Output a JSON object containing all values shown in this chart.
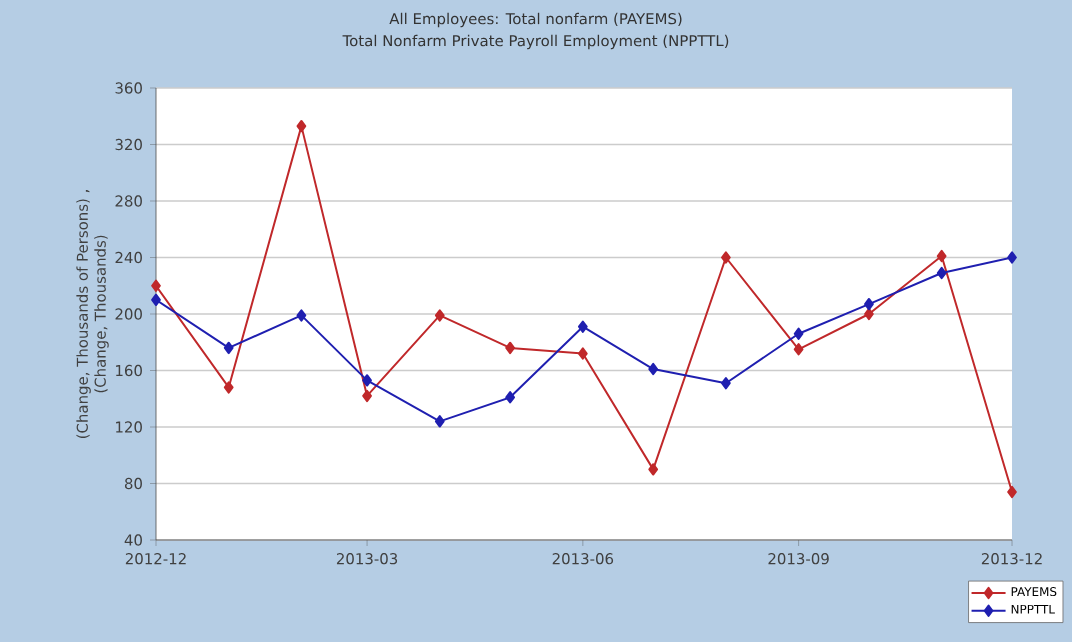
{
  "chart_data": {
    "type": "line",
    "title": "All Employees: Total nonfarm (PAYEMS)",
    "subtitle": "Total Nonfarm Private Payroll Employment (NPPTTL)",
    "ylabel": "(Change, Thousands of Persons) , (Change, Thousands)",
    "x": [
      "2012-12",
      "2013-01",
      "2013-02",
      "2013-03",
      "2013-04",
      "2013-05",
      "2013-06",
      "2013-07",
      "2013-08",
      "2013-09",
      "2013-10",
      "2013-11",
      "2013-12"
    ],
    "series": [
      {
        "name": "PAYEMS",
        "color": "#c0282a",
        "values": [
          220,
          148,
          333,
          142,
          199,
          176,
          172,
          90,
          240,
          175,
          200,
          241,
          74
        ]
      },
      {
        "name": "NPPTTL",
        "color": "#1f1fb0",
        "values": [
          210,
          176,
          199,
          153,
          124,
          141,
          191,
          161,
          151,
          186,
          207,
          229,
          240
        ]
      }
    ],
    "xlim": [
      "2012-12",
      "2013-12"
    ],
    "xticks": [
      "2012-12",
      "2013-03",
      "2013-06",
      "2013-09",
      "2013-12"
    ],
    "ylim": [
      40,
      360
    ],
    "yticks": [
      40,
      80,
      120,
      160,
      200,
      240,
      280,
      320,
      360
    ],
    "grid": "y",
    "legend": "bottom right",
    "marker": "diamond",
    "line_style": "solid"
  }
}
